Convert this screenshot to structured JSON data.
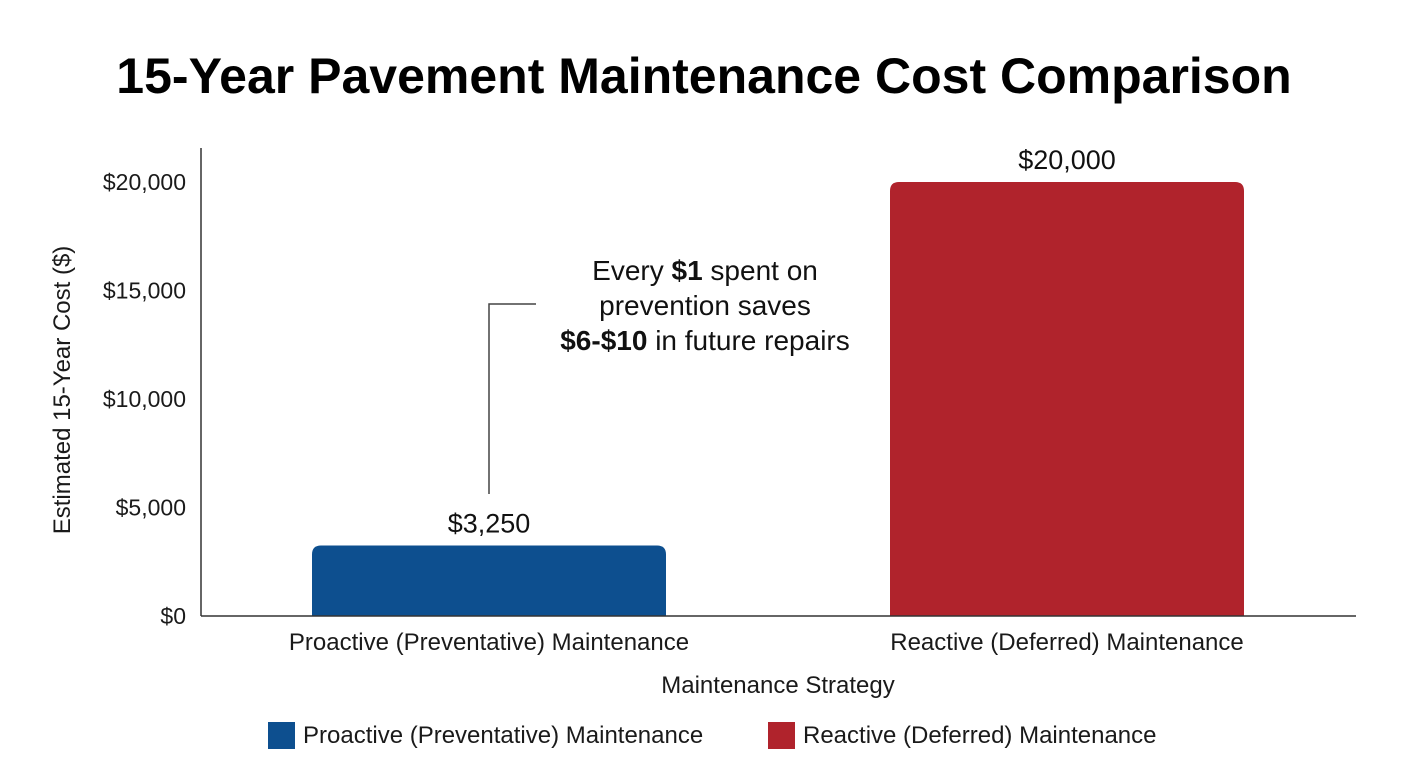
{
  "chart_data": {
    "type": "bar",
    "title": "15-Year Pavement Maintenance Cost Comparison",
    "xlabel": "Maintenance Strategy",
    "ylabel": "Estimated 15-Year Cost ($)",
    "ylim": [
      0,
      20000
    ],
    "yticks": [
      0,
      5000,
      10000,
      15000,
      20000
    ],
    "ytick_labels": [
      "$0",
      "$5,000",
      "$10,000",
      "$15,000",
      "$20,000"
    ],
    "categories": [
      "Proactive (Preventative) Maintenance",
      "Reactive (Deferred) Maintenance"
    ],
    "values": [
      3250,
      20000
    ],
    "data_labels": [
      "$3,250",
      "$20,000"
    ],
    "colors": [
      "#0d4f8f",
      "#b0232c"
    ],
    "grid": false,
    "legend": {
      "placement": "bottom",
      "entries": [
        "Proactive (Preventative) Maintenance",
        "Reactive (Deferred) Maintenance"
      ]
    },
    "annotation": {
      "line1_before": "Every ",
      "line1_bold": "$1",
      "line1_after": " spent on",
      "line2": "prevention saves",
      "line3_bold": "$6-$10",
      "line3_after": " in future repairs"
    }
  }
}
